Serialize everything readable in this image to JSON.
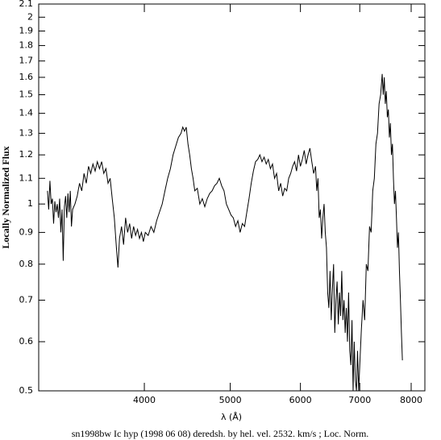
{
  "chart_data": {
    "type": "line",
    "x_label": "λ (Å)",
    "y_label": "Locally Normalized Flux",
    "caption": "sn1998bw Ic hyp (1998 06 08) deredsh. by hel. vel.  2532. km/s ;  Loc. Norm.",
    "log_x": true,
    "log_y": true,
    "color": "#000000",
    "xlim": [
      3040,
      8290
    ],
    "ylim": [
      0.5,
      2.1
    ],
    "xticks": [
      4000,
      5000,
      6000,
      7000,
      8000
    ],
    "yticks": [
      0.5,
      0.6,
      0.7,
      0.8,
      0.9,
      1,
      1.1,
      1.2,
      1.3,
      1.4,
      1.5,
      1.6,
      1.7,
      1.8,
      1.9,
      2,
      2.1
    ],
    "x": [
      3110,
      3120,
      3130,
      3140,
      3150,
      3160,
      3170,
      3180,
      3190,
      3200,
      3210,
      3220,
      3230,
      3240,
      3250,
      3260,
      3270,
      3280,
      3290,
      3300,
      3310,
      3320,
      3340,
      3360,
      3380,
      3400,
      3420,
      3440,
      3460,
      3480,
      3500,
      3520,
      3540,
      3560,
      3580,
      3600,
      3620,
      3640,
      3660,
      3680,
      3700,
      3720,
      3735,
      3750,
      3770,
      3790,
      3810,
      3830,
      3850,
      3870,
      3890,
      3910,
      3930,
      3950,
      3970,
      3990,
      4010,
      4040,
      4070,
      4100,
      4130,
      4160,
      4190,
      4220,
      4250,
      4280,
      4310,
      4340,
      4370,
      4400,
      4420,
      4440,
      4460,
      4480,
      4500,
      4520,
      4540,
      4560,
      4590,
      4620,
      4650,
      4680,
      4710,
      4740,
      4770,
      4800,
      4830,
      4860,
      4890,
      4920,
      4950,
      4980,
      5010,
      5040,
      5070,
      5100,
      5130,
      5160,
      5190,
      5220,
      5250,
      5280,
      5310,
      5340,
      5370,
      5400,
      5430,
      5460,
      5490,
      5520,
      5550,
      5580,
      5610,
      5640,
      5670,
      5700,
      5730,
      5760,
      5790,
      5820,
      5850,
      5880,
      5910,
      5940,
      5970,
      6000,
      6030,
      6060,
      6090,
      6120,
      6150,
      6180,
      6210,
      6240,
      6260,
      6280,
      6300,
      6320,
      6340,
      6360,
      6380,
      6400,
      6420,
      6440,
      6460,
      6480,
      6500,
      6520,
      6540,
      6560,
      6580,
      6600,
      6620,
      6640,
      6660,
      6680,
      6700,
      6720,
      6740,
      6760,
      6780,
      6800,
      6820,
      6840,
      6860,
      6880,
      6900,
      6920,
      6940,
      6960,
      6980,
      7000,
      7030,
      7060,
      7090,
      7120,
      7150,
      7180,
      7210,
      7240,
      7270,
      7300,
      7330,
      7360,
      7390,
      7420,
      7440,
      7460,
      7480,
      7500,
      7520,
      7540,
      7560,
      7580,
      7600,
      7620,
      7640,
      7660,
      7680,
      7700,
      7720,
      7740,
      7760,
      7780,
      7800,
      7820
    ],
    "values": [
      1.05,
      0.98,
      1.09,
      1.0,
      1.02,
      0.93,
      1.01,
      0.97,
      1.0,
      0.95,
      1.02,
      0.9,
      0.98,
      0.81,
      0.99,
      1.03,
      0.95,
      1.04,
      0.97,
      1.05,
      0.92,
      0.98,
      1.0,
      1.03,
      1.08,
      1.05,
      1.12,
      1.08,
      1.15,
      1.12,
      1.16,
      1.13,
      1.17,
      1.14,
      1.17,
      1.12,
      1.14,
      1.08,
      1.1,
      1.02,
      0.95,
      0.85,
      0.79,
      0.88,
      0.92,
      0.86,
      0.95,
      0.9,
      0.93,
      0.88,
      0.92,
      0.89,
      0.91,
      0.88,
      0.9,
      0.87,
      0.9,
      0.89,
      0.92,
      0.9,
      0.94,
      0.97,
      1.0,
      1.05,
      1.1,
      1.14,
      1.2,
      1.24,
      1.28,
      1.3,
      1.33,
      1.31,
      1.33,
      1.25,
      1.2,
      1.14,
      1.1,
      1.05,
      1.06,
      1.0,
      1.02,
      0.99,
      1.02,
      1.04,
      1.05,
      1.07,
      1.08,
      1.1,
      1.07,
      1.05,
      1.0,
      0.98,
      0.96,
      0.95,
      0.92,
      0.94,
      0.9,
      0.93,
      0.92,
      0.97,
      1.02,
      1.08,
      1.13,
      1.17,
      1.18,
      1.2,
      1.17,
      1.19,
      1.16,
      1.18,
      1.14,
      1.16,
      1.1,
      1.12,
      1.05,
      1.08,
      1.03,
      1.06,
      1.05,
      1.1,
      1.12,
      1.15,
      1.17,
      1.13,
      1.2,
      1.15,
      1.18,
      1.22,
      1.16,
      1.2,
      1.23,
      1.17,
      1.12,
      1.15,
      1.05,
      1.1,
      0.95,
      0.98,
      0.88,
      0.95,
      1.0,
      0.9,
      0.85,
      0.72,
      0.68,
      0.78,
      0.65,
      0.73,
      0.8,
      0.62,
      0.7,
      0.75,
      0.64,
      0.72,
      0.66,
      0.78,
      0.65,
      0.7,
      0.62,
      0.68,
      0.6,
      0.72,
      0.58,
      0.55,
      0.65,
      0.5,
      0.6,
      0.52,
      0.5,
      0.58,
      0.5,
      0.55,
      0.63,
      0.7,
      0.65,
      0.8,
      0.78,
      0.92,
      0.9,
      1.05,
      1.1,
      1.25,
      1.3,
      1.45,
      1.5,
      1.62,
      1.5,
      1.6,
      1.45,
      1.52,
      1.38,
      1.42,
      1.28,
      1.35,
      1.2,
      1.25,
      1.1,
      1.0,
      1.05,
      0.95,
      0.85,
      0.9,
      0.78,
      0.7,
      0.62,
      0.56
    ]
  }
}
